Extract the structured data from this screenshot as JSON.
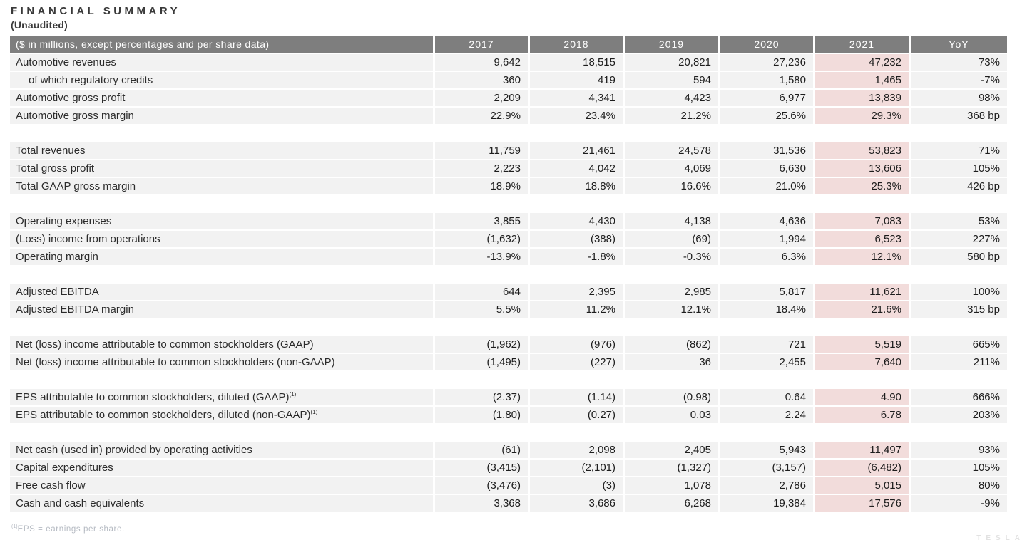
{
  "page": {
    "title": "FINANCIAL SUMMARY",
    "subtitle": "(Unaudited)",
    "footnote_sup": "(1)",
    "footnote_text": "EPS = earnings per share.",
    "watermark": "TESLA"
  },
  "colors": {
    "header_bg": "#7E7E7E",
    "row_bg": "#F2F2F2",
    "highlight_2021": "#F2DCDB",
    "header_text": "#FFFFFF",
    "body_text": "#2A2A2A",
    "footnote_text": "#B6BBC3"
  },
  "table": {
    "label_header": "($ in millions, except percentages and per share data)",
    "year_headers": [
      "2017",
      "2018",
      "2019",
      "2020",
      "2021"
    ],
    "yoy_header": "YoY",
    "highlighted_column": "2021",
    "sections": [
      {
        "rows": [
          {
            "label": "Automotive revenues",
            "indent": false,
            "sup": "",
            "values": [
              "9,642",
              "18,515",
              "20,821",
              "27,236",
              "47,232"
            ],
            "yoy": "73%"
          },
          {
            "label": "of which regulatory credits",
            "indent": true,
            "sup": "",
            "values": [
              "360",
              "419",
              "594",
              "1,580",
              "1,465"
            ],
            "yoy": "-7%"
          },
          {
            "label": "Automotive gross profit",
            "indent": false,
            "sup": "",
            "values": [
              "2,209",
              "4,341",
              "4,423",
              "6,977",
              "13,839"
            ],
            "yoy": "98%"
          },
          {
            "label": "Automotive gross margin",
            "indent": false,
            "sup": "",
            "values": [
              "22.9%",
              "23.4%",
              "21.2%",
              "25.6%",
              "29.3%"
            ],
            "yoy": "368 bp"
          }
        ]
      },
      {
        "rows": [
          {
            "label": "Total revenues",
            "indent": false,
            "sup": "",
            "values": [
              "11,759",
              "21,461",
              "24,578",
              "31,536",
              "53,823"
            ],
            "yoy": "71%"
          },
          {
            "label": "Total gross profit",
            "indent": false,
            "sup": "",
            "values": [
              "2,223",
              "4,042",
              "4,069",
              "6,630",
              "13,606"
            ],
            "yoy": "105%"
          },
          {
            "label": "Total GAAP gross margin",
            "indent": false,
            "sup": "",
            "values": [
              "18.9%",
              "18.8%",
              "16.6%",
              "21.0%",
              "25.3%"
            ],
            "yoy": "426 bp"
          }
        ]
      },
      {
        "rows": [
          {
            "label": "Operating expenses",
            "indent": false,
            "sup": "",
            "values": [
              "3,855",
              "4,430",
              "4,138",
              "4,636",
              "7,083"
            ],
            "yoy": "53%"
          },
          {
            "label": "(Loss) income from operations",
            "indent": false,
            "sup": "",
            "values": [
              "(1,632)",
              "(388)",
              "(69)",
              "1,994",
              "6,523"
            ],
            "yoy": "227%"
          },
          {
            "label": "Operating margin",
            "indent": false,
            "sup": "",
            "values": [
              "-13.9%",
              "-1.8%",
              "-0.3%",
              "6.3%",
              "12.1%"
            ],
            "yoy": "580 bp"
          }
        ]
      },
      {
        "rows": [
          {
            "label": "Adjusted EBITDA",
            "indent": false,
            "sup": "",
            "values": [
              "644",
              "2,395",
              "2,985",
              "5,817",
              "11,621"
            ],
            "yoy": "100%"
          },
          {
            "label": "Adjusted EBITDA margin",
            "indent": false,
            "sup": "",
            "values": [
              "5.5%",
              "11.2%",
              "12.1%",
              "18.4%",
              "21.6%"
            ],
            "yoy": "315 bp"
          }
        ]
      },
      {
        "rows": [
          {
            "label": "Net (loss) income attributable to common stockholders (GAAP)",
            "indent": false,
            "sup": "",
            "values": [
              "(1,962)",
              "(976)",
              "(862)",
              "721",
              "5,519"
            ],
            "yoy": "665%"
          },
          {
            "label": "Net (loss) income attributable to common stockholders (non-GAAP)",
            "indent": false,
            "sup": "",
            "values": [
              "(1,495)",
              "(227)",
              "36",
              "2,455",
              "7,640"
            ],
            "yoy": "211%"
          }
        ]
      },
      {
        "rows": [
          {
            "label": "EPS attributable to common stockholders, diluted (GAAP)",
            "indent": false,
            "sup": "(1)",
            "values": [
              "(2.37)",
              "(1.14)",
              "(0.98)",
              "0.64",
              "4.90"
            ],
            "yoy": "666%"
          },
          {
            "label": "EPS attributable to common stockholders, diluted (non-GAAP)",
            "indent": false,
            "sup": "(1)",
            "values": [
              "(1.80)",
              "(0.27)",
              "0.03",
              "2.24",
              "6.78"
            ],
            "yoy": "203%"
          }
        ]
      },
      {
        "rows": [
          {
            "label": "Net cash (used in) provided by operating activities",
            "indent": false,
            "sup": "",
            "values": [
              "(61)",
              "2,098",
              "2,405",
              "5,943",
              "11,497"
            ],
            "yoy": "93%"
          },
          {
            "label": "Capital expenditures",
            "indent": false,
            "sup": "",
            "values": [
              "(3,415)",
              "(2,101)",
              "(1,327)",
              "(3,157)",
              "(6,482)"
            ],
            "yoy": "105%"
          },
          {
            "label": "Free cash flow",
            "indent": false,
            "sup": "",
            "values": [
              "(3,476)",
              "(3)",
              "1,078",
              "2,786",
              "5,015"
            ],
            "yoy": "80%"
          },
          {
            "label": "Cash and cash equivalents",
            "indent": false,
            "sup": "",
            "values": [
              "3,368",
              "3,686",
              "6,268",
              "19,384",
              "17,576"
            ],
            "yoy": "-9%"
          }
        ]
      }
    ]
  }
}
